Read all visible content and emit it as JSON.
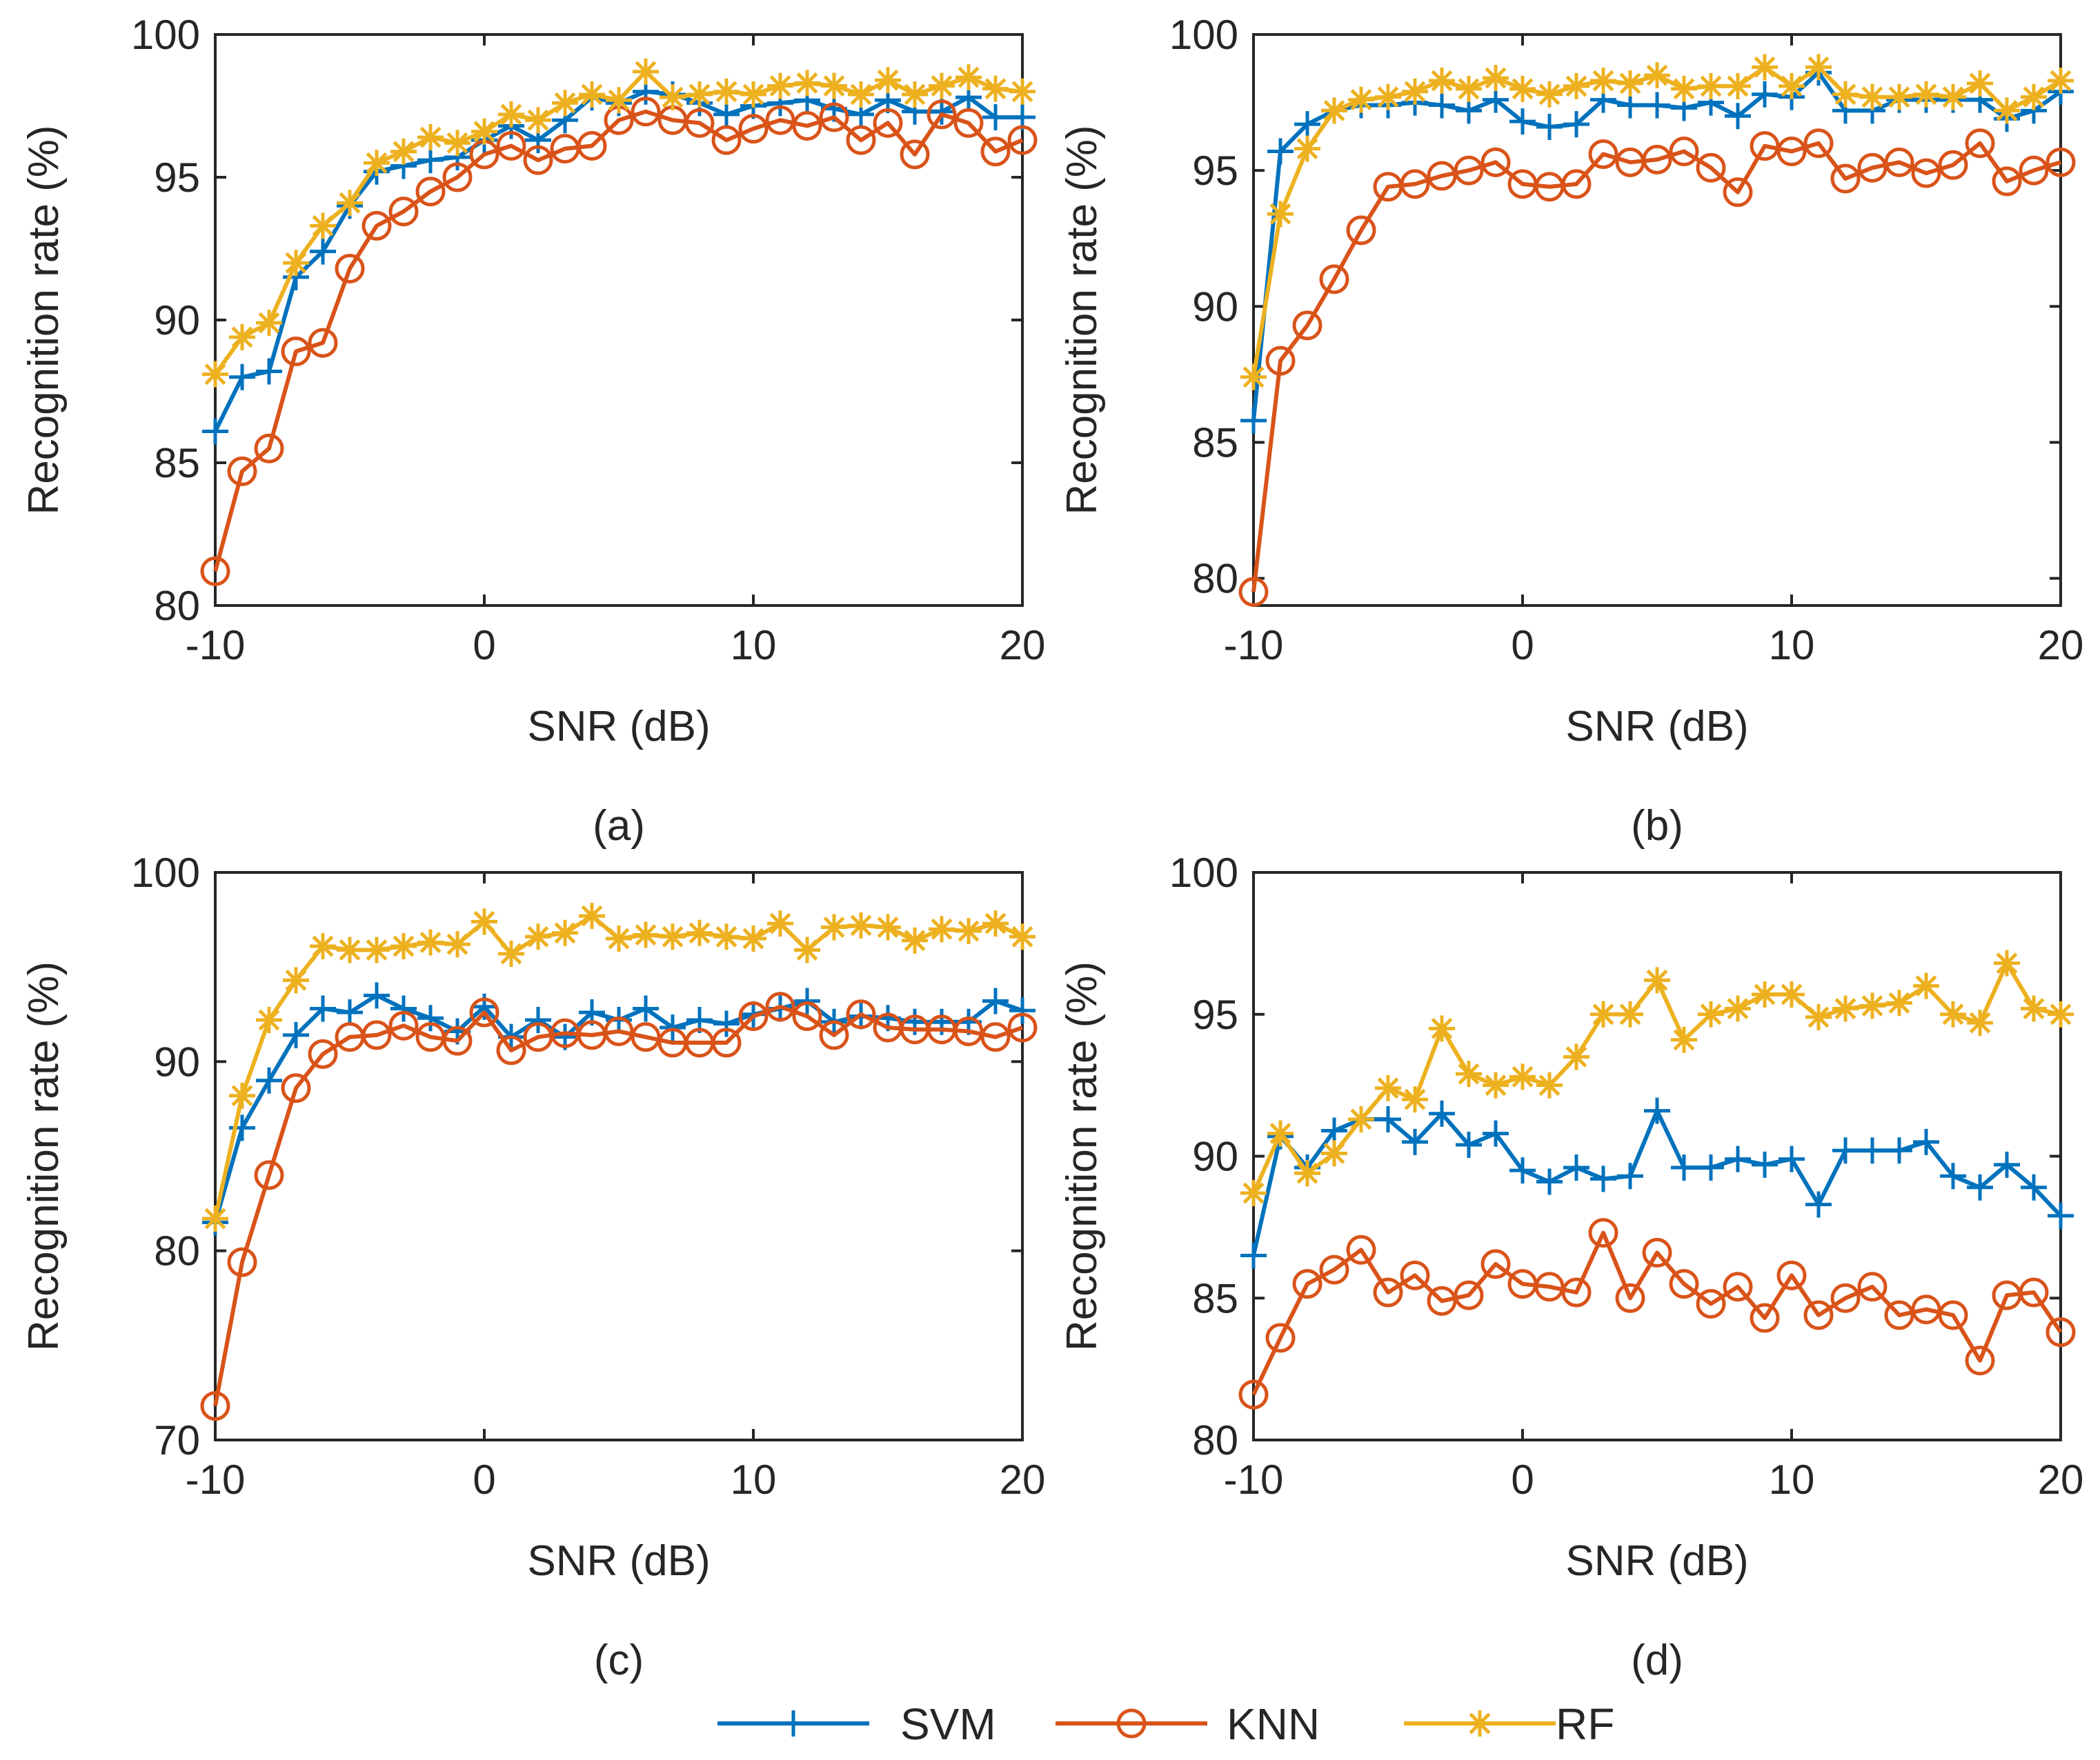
{
  "legend": {
    "entries": [
      {
        "name": "SVM",
        "color": "#0072BD",
        "marker": "plus"
      },
      {
        "name": "KNN",
        "color": "#D95319",
        "marker": "circle"
      },
      {
        "name": "RF",
        "color": "#EDB120",
        "marker": "asterisk"
      }
    ]
  },
  "chart_data": [
    {
      "type": "line",
      "caption": "(a)",
      "xlabel": "SNR (dB)",
      "ylabel": "Recognition rate (%)",
      "xlim": [
        -10,
        20
      ],
      "ylim": [
        80,
        100
      ],
      "xticks": [
        -10,
        0,
        10,
        20
      ],
      "yticks": [
        80,
        85,
        90,
        95,
        100
      ],
      "x": [
        -10,
        -9,
        -8,
        -7,
        -6,
        -5,
        -4,
        -3,
        -2,
        -1,
        0,
        1,
        2,
        3,
        4,
        5,
        6,
        7,
        8,
        9,
        10,
        11,
        12,
        13,
        14,
        15,
        16,
        17,
        18,
        19,
        20
      ],
      "series": [
        {
          "name": "SVM",
          "values": [
            86.1,
            88.0,
            88.2,
            91.5,
            92.4,
            94.0,
            95.2,
            95.4,
            95.6,
            95.7,
            96.3,
            96.8,
            96.3,
            97.0,
            97.8,
            97.6,
            98.0,
            97.9,
            97.6,
            97.2,
            97.5,
            97.6,
            97.7,
            97.4,
            97.2,
            97.7,
            97.3,
            97.3,
            97.8,
            97.1,
            97.1
          ]
        },
        {
          "name": "KNN",
          "values": [
            81.2,
            84.7,
            85.5,
            88.9,
            89.2,
            91.8,
            93.3,
            93.8,
            94.5,
            95.0,
            95.8,
            96.1,
            95.6,
            96.0,
            96.1,
            97.0,
            97.3,
            97.0,
            96.9,
            96.3,
            96.7,
            97.0,
            96.8,
            97.1,
            96.3,
            96.9,
            95.8,
            97.2,
            96.9,
            95.9,
            96.3
          ]
        },
        {
          "name": "RF",
          "values": [
            88.1,
            89.4,
            89.9,
            92.0,
            93.3,
            94.1,
            95.5,
            95.9,
            96.4,
            96.2,
            96.6,
            97.2,
            97.0,
            97.6,
            97.9,
            97.7,
            98.7,
            97.8,
            97.9,
            98.0,
            97.9,
            98.2,
            98.3,
            98.2,
            97.9,
            98.4,
            97.9,
            98.2,
            98.5,
            98.1,
            98.0
          ]
        }
      ]
    },
    {
      "type": "line",
      "caption": "(b)",
      "xlabel": "SNR (dB)",
      "ylabel": "Recognition rate (%)",
      "xlim": [
        -10,
        20
      ],
      "ylim": [
        79,
        100
      ],
      "xticks": [
        -10,
        0,
        10,
        20
      ],
      "yticks": [
        80,
        85,
        90,
        95,
        100
      ],
      "x": [
        -10,
        -9,
        -8,
        -7,
        -6,
        -5,
        -4,
        -3,
        -2,
        -1,
        0,
        1,
        2,
        3,
        4,
        5,
        6,
        7,
        8,
        9,
        10,
        11,
        12,
        13,
        14,
        15,
        16,
        17,
        18,
        19,
        20
      ],
      "series": [
        {
          "name": "SVM",
          "values": [
            85.8,
            95.7,
            96.7,
            97.2,
            97.4,
            97.4,
            97.5,
            97.4,
            97.2,
            97.6,
            96.8,
            96.6,
            96.7,
            97.6,
            97.4,
            97.4,
            97.3,
            97.5,
            97.0,
            97.8,
            97.7,
            98.6,
            97.2,
            97.2,
            97.6,
            97.6,
            97.6,
            97.6,
            96.9,
            97.2,
            97.9
          ]
        },
        {
          "name": "KNN",
          "values": [
            79.5,
            88.0,
            89.3,
            91.0,
            92.8,
            94.4,
            94.5,
            94.8,
            95.0,
            95.3,
            94.5,
            94.4,
            94.5,
            95.6,
            95.3,
            95.4,
            95.7,
            95.1,
            94.2,
            95.9,
            95.7,
            96.0,
            94.7,
            95.1,
            95.3,
            94.9,
            95.2,
            96.0,
            94.6,
            95.0,
            95.3
          ]
        },
        {
          "name": "RF",
          "values": [
            87.4,
            93.4,
            95.8,
            97.2,
            97.6,
            97.7,
            97.9,
            98.3,
            98.0,
            98.4,
            98.0,
            97.8,
            98.1,
            98.3,
            98.2,
            98.5,
            98.0,
            98.1,
            98.1,
            98.8,
            98.1,
            98.8,
            97.8,
            97.7,
            97.7,
            97.8,
            97.7,
            98.2,
            97.2,
            97.7,
            98.3
          ]
        }
      ]
    },
    {
      "type": "line",
      "caption": "(c)",
      "xlabel": "SNR (dB)",
      "ylabel": "Recognition rate (%)",
      "xlim": [
        -10,
        20
      ],
      "ylim": [
        70,
        100
      ],
      "xticks": [
        -10,
        0,
        10,
        20
      ],
      "yticks": [
        70,
        80,
        90,
        100
      ],
      "x": [
        -10,
        -9,
        -8,
        -7,
        -6,
        -5,
        -4,
        -3,
        -2,
        -1,
        0,
        1,
        2,
        3,
        4,
        5,
        6,
        7,
        8,
        9,
        10,
        11,
        12,
        13,
        14,
        15,
        16,
        17,
        18,
        19,
        20
      ],
      "series": [
        {
          "name": "SVM",
          "values": [
            81.5,
            86.5,
            89.0,
            91.4,
            92.8,
            92.6,
            93.5,
            92.8,
            92.3,
            91.6,
            92.9,
            91.3,
            92.2,
            91.3,
            92.6,
            92.2,
            92.8,
            91.8,
            92.2,
            92.0,
            92.5,
            92.8,
            93.2,
            92.1,
            92.4,
            92.3,
            92.1,
            92.1,
            92.1,
            93.2,
            92.7
          ]
        },
        {
          "name": "KNN",
          "values": [
            71.8,
            79.4,
            84.0,
            88.6,
            90.4,
            91.3,
            91.4,
            91.9,
            91.3,
            91.1,
            92.6,
            90.6,
            91.3,
            91.5,
            91.4,
            91.6,
            91.3,
            91.0,
            91.0,
            91.0,
            92.4,
            92.9,
            92.4,
            91.4,
            92.5,
            91.8,
            91.7,
            91.7,
            91.6,
            91.3,
            91.8
          ]
        },
        {
          "name": "RF",
          "values": [
            81.7,
            88.2,
            92.2,
            94.3,
            96.1,
            95.9,
            95.9,
            96.1,
            96.3,
            96.2,
            97.4,
            95.7,
            96.6,
            96.8,
            97.7,
            96.5,
            96.7,
            96.6,
            96.8,
            96.6,
            96.5,
            97.3,
            95.9,
            97.1,
            97.2,
            97.1,
            96.4,
            97.0,
            96.9,
            97.3,
            96.6
          ]
        }
      ]
    },
    {
      "type": "line",
      "caption": "(d)",
      "xlabel": "SNR (dB)",
      "ylabel": "Recognition rate (%)",
      "xlim": [
        -10,
        20
      ],
      "ylim": [
        80,
        100
      ],
      "xticks": [
        -10,
        0,
        10,
        20
      ],
      "yticks": [
        80,
        85,
        90,
        95,
        100
      ],
      "x": [
        -10,
        -9,
        -8,
        -7,
        -6,
        -5,
        -4,
        -3,
        -2,
        -1,
        0,
        1,
        2,
        3,
        4,
        5,
        6,
        7,
        8,
        9,
        10,
        11,
        12,
        13,
        14,
        15,
        16,
        17,
        18,
        19,
        20
      ],
      "series": [
        {
          "name": "SVM",
          "values": [
            86.5,
            90.7,
            89.6,
            90.9,
            91.3,
            91.3,
            90.5,
            91.5,
            90.4,
            90.8,
            89.5,
            89.1,
            89.6,
            89.2,
            89.3,
            91.6,
            89.6,
            89.6,
            89.9,
            89.7,
            89.9,
            88.3,
            90.2,
            90.2,
            90.2,
            90.5,
            89.3,
            88.9,
            89.7,
            88.9,
            87.9
          ]
        },
        {
          "name": "KNN",
          "values": [
            81.6,
            83.6,
            85.5,
            86.0,
            86.7,
            85.2,
            85.8,
            84.9,
            85.1,
            86.2,
            85.5,
            85.4,
            85.2,
            87.3,
            85.0,
            86.6,
            85.5,
            84.8,
            85.4,
            84.3,
            85.8,
            84.4,
            85.0,
            85.4,
            84.4,
            84.6,
            84.4,
            82.8,
            85.1,
            85.2,
            83.8
          ]
        },
        {
          "name": "RF",
          "values": [
            88.7,
            90.8,
            89.4,
            90.1,
            91.3,
            92.4,
            92.0,
            94.5,
            92.9,
            92.5,
            92.8,
            92.5,
            93.5,
            95.0,
            95.0,
            96.2,
            94.1,
            95.0,
            95.2,
            95.7,
            95.7,
            94.9,
            95.2,
            95.3,
            95.4,
            96.0,
            95.0,
            94.7,
            96.8,
            95.2,
            95.0
          ]
        }
      ]
    }
  ]
}
